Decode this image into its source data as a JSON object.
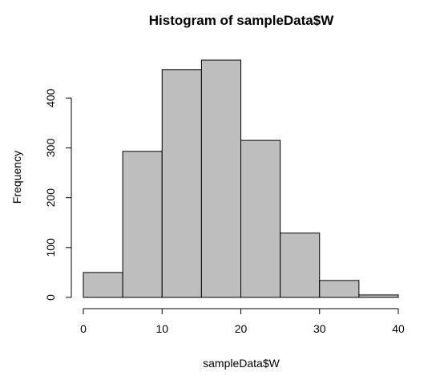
{
  "chart_data": {
    "type": "bar",
    "title": "Histogram of sampleData$W",
    "xlabel": "sampleData$W",
    "ylabel": "Frequency",
    "bins": [
      {
        "start": 0,
        "end": 5,
        "count": 50
      },
      {
        "start": 5,
        "end": 10,
        "count": 293
      },
      {
        "start": 10,
        "end": 15,
        "count": 457
      },
      {
        "start": 15,
        "end": 20,
        "count": 476
      },
      {
        "start": 20,
        "end": 25,
        "count": 315
      },
      {
        "start": 25,
        "end": 30,
        "count": 129
      },
      {
        "start": 30,
        "end": 35,
        "count": 34
      },
      {
        "start": 35,
        "end": 40,
        "count": 5
      }
    ],
    "x_ticks": [
      0,
      10,
      20,
      30,
      40
    ],
    "y_ticks": [
      0,
      100,
      200,
      300,
      400
    ],
    "xlim": [
      0,
      40
    ],
    "ylim": [
      0,
      476
    ],
    "grid": false,
    "colors": {
      "bar_fill": "#bebebe",
      "bar_stroke": "#000000"
    }
  }
}
